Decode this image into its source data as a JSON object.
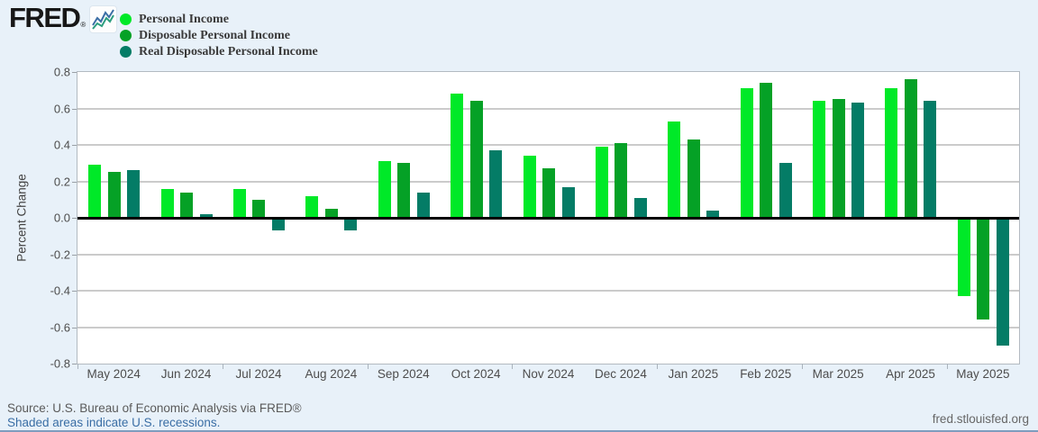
{
  "header": {
    "logo_text": "FRED",
    "registered_mark": "®"
  },
  "colors": {
    "page_background": "#e8f1f9",
    "plot_background": "#ffffff",
    "gridline": "#cbcbcb",
    "zero_line": "#000000",
    "link": "#3a6ea5"
  },
  "chart_data": {
    "type": "bar",
    "title": "",
    "xlabel": "",
    "ylabel": "Percent Change",
    "ylim": [
      -0.8,
      0.8
    ],
    "yticks": [
      0.8,
      0.6,
      0.4,
      0.2,
      0.0,
      -0.2,
      -0.4,
      -0.6,
      -0.8
    ],
    "grid": true,
    "legend_position": "top-left",
    "categories": [
      "May 2024",
      "Jun 2024",
      "Jul 2024",
      "Aug 2024",
      "Sep 2024",
      "Oct 2024",
      "Nov 2024",
      "Dec 2024",
      "Jan 2025",
      "Feb 2025",
      "Mar 2025",
      "Apr 2025",
      "May 2025"
    ],
    "series": [
      {
        "name": "Personal Income",
        "color": "#00e928",
        "values": [
          0.29,
          0.16,
          0.16,
          0.12,
          0.31,
          0.68,
          0.34,
          0.39,
          0.53,
          0.71,
          0.64,
          0.71,
          -0.43
        ]
      },
      {
        "name": "Disposable Personal Income",
        "color": "#05a126",
        "values": [
          0.25,
          0.14,
          0.1,
          0.05,
          0.3,
          0.64,
          0.27,
          0.41,
          0.43,
          0.74,
          0.65,
          0.76,
          -0.56
        ]
      },
      {
        "name": "Real Disposable Personal Income",
        "color": "#047c66",
        "values": [
          0.26,
          0.02,
          -0.07,
          -0.07,
          0.14,
          0.37,
          0.17,
          0.11,
          0.04,
          0.3,
          0.63,
          0.64,
          -0.7
        ]
      }
    ]
  },
  "footer": {
    "source": "Source: U.S. Bureau of Economic Analysis via FRED®",
    "recession_note": "Shaded areas indicate U.S. recessions.",
    "site": "fred.stlouisfed.org"
  }
}
